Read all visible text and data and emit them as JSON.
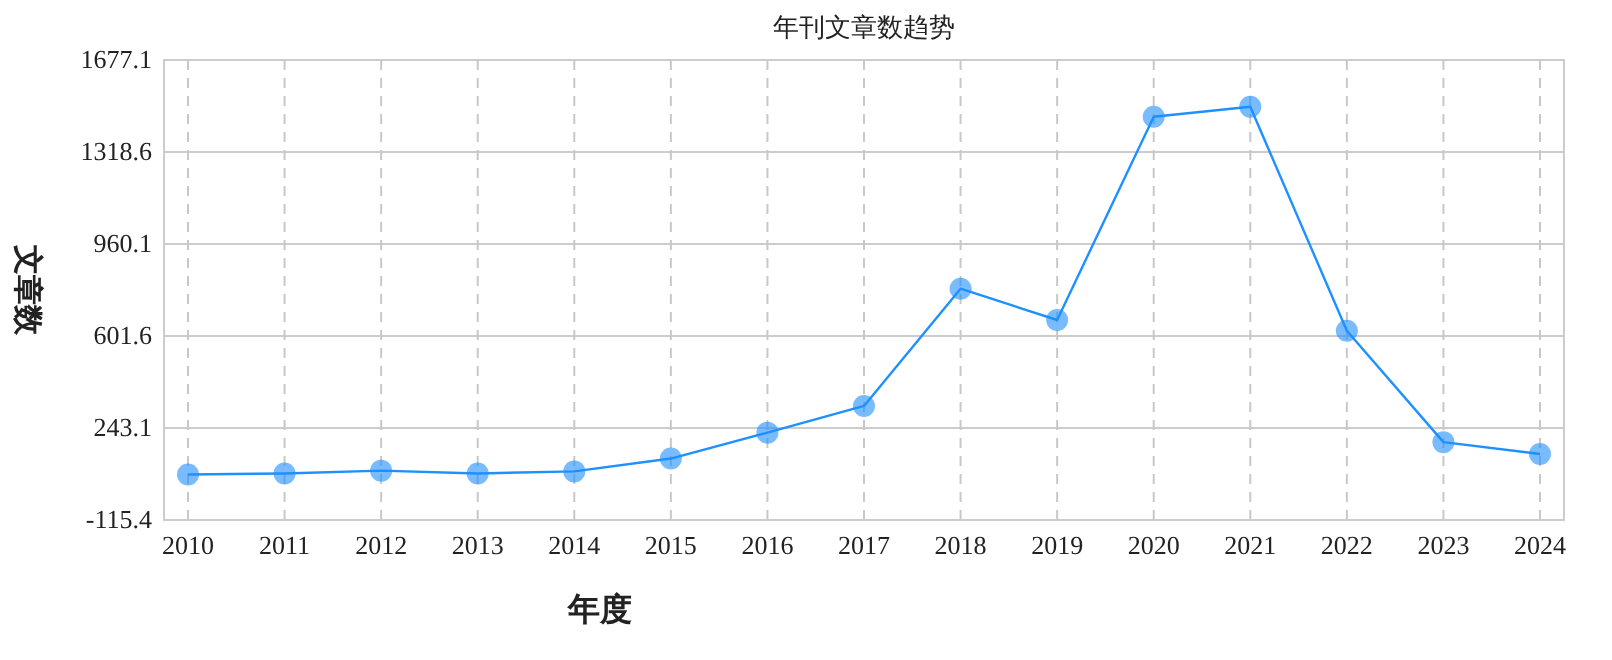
{
  "chart_data": {
    "type": "line",
    "title": "年刊文章数趋势",
    "xlabel": "年度",
    "ylabel": "文章数",
    "categories": [
      "2010",
      "2011",
      "2012",
      "2013",
      "2014",
      "2015",
      "2016",
      "2017",
      "2018",
      "2019",
      "2020",
      "2021",
      "2022",
      "2023",
      "2024"
    ],
    "series": [
      {
        "color": "#1e90ff",
        "values": [
          62,
          66,
          77,
          66,
          74,
          124,
          225,
          329,
          786,
          664,
          1456,
          1495,
          622,
          188,
          142
        ]
      }
    ],
    "ylim": [
      -115.4,
      1677.1
    ],
    "yticks": [
      -115.4,
      243.1,
      601.6,
      960.1,
      1318.6,
      1677.1
    ],
    "grid": true,
    "marker": "circle",
    "line_style": "solid"
  }
}
